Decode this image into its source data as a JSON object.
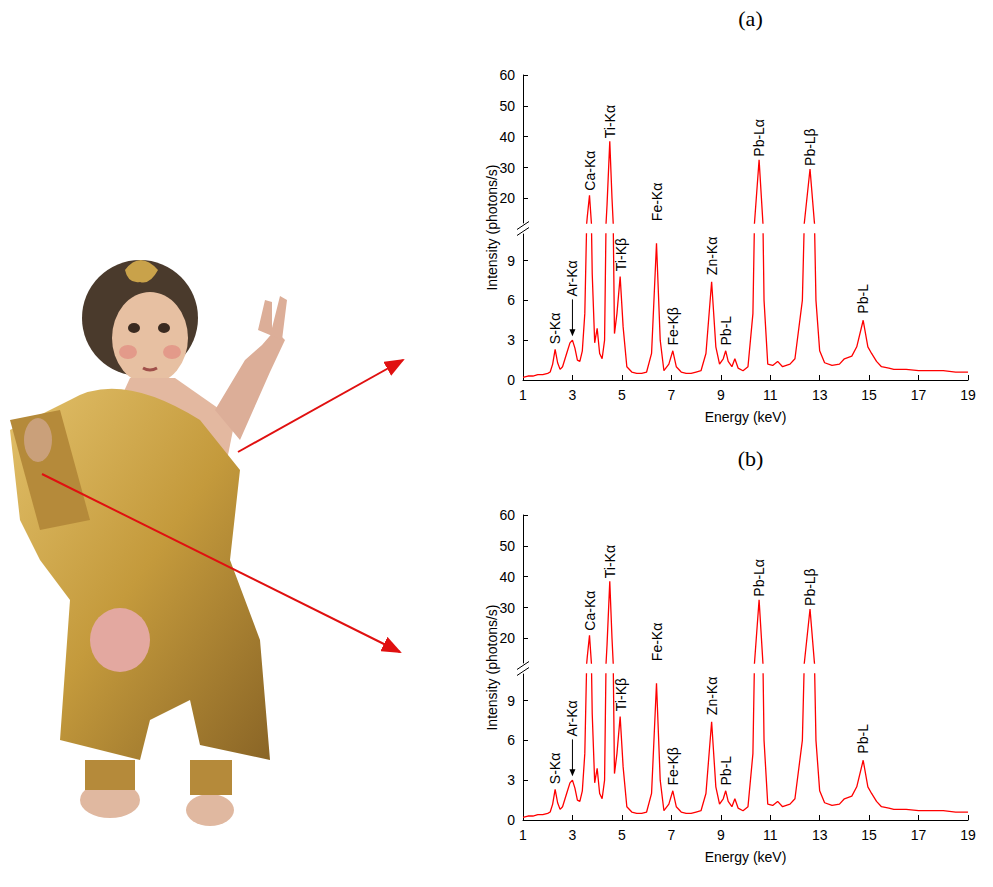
{
  "chart_data": [
    {
      "type": "line",
      "title": "(a)",
      "color": "#ff0000",
      "x_label": "Energy (keV)",
      "y_label": "Intensity (photons/s)",
      "xlim": [
        1,
        19
      ],
      "xticks": [
        1,
        3,
        5,
        7,
        9,
        11,
        13,
        15,
        17,
        19
      ],
      "ylim": [
        0,
        60
      ],
      "yticks": [
        0,
        3,
        6,
        9,
        20,
        30,
        40,
        50,
        60
      ],
      "y_break": [
        11,
        12
      ],
      "x": [
        1.0,
        1.2,
        1.4,
        1.6,
        1.8,
        2.0,
        2.1,
        2.2,
        2.3,
        2.4,
        2.5,
        2.6,
        2.7,
        2.8,
        2.9,
        3.0,
        3.1,
        3.2,
        3.3,
        3.4,
        3.5,
        3.6,
        3.69,
        3.8,
        3.9,
        4.0,
        4.1,
        4.2,
        4.3,
        4.4,
        4.51,
        4.6,
        4.7,
        4.8,
        4.93,
        5.05,
        5.2,
        5.4,
        5.6,
        5.8,
        6.0,
        6.2,
        6.4,
        6.55,
        6.7,
        6.9,
        7.06,
        7.2,
        7.4,
        7.6,
        7.8,
        8.0,
        8.2,
        8.4,
        8.63,
        8.8,
        8.95,
        9.1,
        9.2,
        9.3,
        9.45,
        9.57,
        9.7,
        9.9,
        10.1,
        10.3,
        10.55,
        10.75,
        10.9,
        11.1,
        11.3,
        11.5,
        11.8,
        12.0,
        12.3,
        12.61,
        12.85,
        13.0,
        13.2,
        13.5,
        13.8,
        14.0,
        14.3,
        14.5,
        14.76,
        14.95,
        15.1,
        15.3,
        15.5,
        15.8,
        16.0,
        16.5,
        17.0,
        17.5,
        18.0,
        18.5,
        19.0
      ],
      "values": [
        0.2,
        0.3,
        0.3,
        0.4,
        0.4,
        0.5,
        0.6,
        1.2,
        2.3,
        1.3,
        0.8,
        1.0,
        1.6,
        2.2,
        2.8,
        3.0,
        2.4,
        1.5,
        1.4,
        2.2,
        5.0,
        14,
        21,
        8,
        2.8,
        3.9,
        2.0,
        1.6,
        3.0,
        18,
        38.5,
        20,
        3.5,
        5.0,
        7.8,
        4.0,
        1.0,
        0.6,
        0.5,
        0.5,
        0.6,
        2.0,
        10.3,
        3.0,
        0.7,
        1.2,
        2.2,
        1.0,
        0.6,
        0.5,
        0.5,
        0.6,
        0.7,
        2.0,
        7.4,
        2.5,
        1.2,
        1.6,
        2.2,
        1.4,
        1.0,
        1.6,
        0.9,
        0.7,
        1.0,
        5.0,
        32.5,
        6,
        1.2,
        1.1,
        1.4,
        1.0,
        1.2,
        1.6,
        6.0,
        29.5,
        6.0,
        2.2,
        1.3,
        1.1,
        1.2,
        1.6,
        1.8,
        2.5,
        4.5,
        2.5,
        2.0,
        1.4,
        1.0,
        0.9,
        0.8,
        0.8,
        0.7,
        0.7,
        0.7,
        0.6,
        0.6
      ],
      "annotations": [
        {
          "text": "S-Kα",
          "x": 2.3,
          "y": 2.7
        },
        {
          "text": "Ar-Kα",
          "x": 3.0,
          "y": 6.3,
          "arrow_y": 3.3
        },
        {
          "text": "Ca-Kα",
          "x": 3.69,
          "y": 22.5
        },
        {
          "text": "Ti-Kα",
          "x": 4.51,
          "y": 39.5
        },
        {
          "text": "Ti-Kβ",
          "x": 4.98,
          "y": 8.2
        },
        {
          "text": "Fe-Kα",
          "x": 6.4,
          "y": 12.6
        },
        {
          "text": "Fe-Kβ",
          "x": 7.06,
          "y": 2.6
        },
        {
          "text": "Zn-Kα",
          "x": 8.63,
          "y": 7.9
        },
        {
          "text": "Pb-L",
          "x": 9.2,
          "y": 2.6
        },
        {
          "text": "Pb-Lα",
          "x": 10.55,
          "y": 33.5
        },
        {
          "text": "Pb-Lβ",
          "x": 12.61,
          "y": 30.5
        },
        {
          "text": "Pb-L",
          "x": 14.76,
          "y": 5.0
        }
      ]
    },
    {
      "type": "line",
      "title": "(b)",
      "color": "#ff0000",
      "x_label": "Energy (keV)",
      "y_label": "Intensity (photons/s)",
      "xlim": [
        1,
        19
      ],
      "xticks": [
        1,
        3,
        5,
        7,
        9,
        11,
        13,
        15,
        17,
        19
      ],
      "ylim": [
        0,
        60
      ],
      "yticks": [
        0,
        3,
        6,
        9,
        20,
        30,
        40,
        50,
        60
      ],
      "y_break": [
        11,
        12
      ],
      "x": [
        1.0,
        1.2,
        1.4,
        1.6,
        1.8,
        2.0,
        2.1,
        2.2,
        2.3,
        2.4,
        2.5,
        2.6,
        2.7,
        2.8,
        2.9,
        3.0,
        3.1,
        3.2,
        3.3,
        3.4,
        3.5,
        3.6,
        3.69,
        3.8,
        3.9,
        4.0,
        4.1,
        4.2,
        4.3,
        4.4,
        4.51,
        4.6,
        4.7,
        4.8,
        4.93,
        5.05,
        5.2,
        5.4,
        5.6,
        5.8,
        6.0,
        6.2,
        6.4,
        6.55,
        6.7,
        6.9,
        7.06,
        7.2,
        7.4,
        7.6,
        7.8,
        8.0,
        8.2,
        8.4,
        8.63,
        8.8,
        8.95,
        9.1,
        9.2,
        9.3,
        9.45,
        9.57,
        9.7,
        9.9,
        10.1,
        10.3,
        10.55,
        10.75,
        10.9,
        11.1,
        11.3,
        11.5,
        11.8,
        12.0,
        12.3,
        12.61,
        12.85,
        13.0,
        13.2,
        13.5,
        13.8,
        14.0,
        14.3,
        14.5,
        14.76,
        14.95,
        15.1,
        15.3,
        15.5,
        15.8,
        16.0,
        16.5,
        17.0,
        17.5,
        18.0,
        18.5,
        19.0
      ],
      "values": [
        0.2,
        0.3,
        0.3,
        0.4,
        0.4,
        0.5,
        0.6,
        1.2,
        2.3,
        1.3,
        0.8,
        1.0,
        1.6,
        2.2,
        2.8,
        3.0,
        2.4,
        1.5,
        1.4,
        2.2,
        5.0,
        14,
        21,
        8,
        2.8,
        3.9,
        2.0,
        1.6,
        3.0,
        18,
        38.5,
        20,
        3.5,
        5.0,
        7.8,
        4.0,
        1.0,
        0.6,
        0.5,
        0.5,
        0.6,
        2.0,
        10.3,
        3.0,
        0.7,
        1.2,
        2.2,
        1.0,
        0.6,
        0.5,
        0.5,
        0.6,
        0.7,
        2.0,
        7.4,
        2.5,
        1.2,
        1.6,
        2.2,
        1.4,
        1.0,
        1.6,
        0.9,
        0.7,
        1.0,
        5.0,
        32.5,
        6,
        1.2,
        1.1,
        1.4,
        1.0,
        1.2,
        1.6,
        6.0,
        29.5,
        6.0,
        2.2,
        1.3,
        1.1,
        1.2,
        1.6,
        1.8,
        2.5,
        4.5,
        2.5,
        2.0,
        1.4,
        1.0,
        0.9,
        0.8,
        0.8,
        0.7,
        0.7,
        0.7,
        0.6,
        0.6
      ],
      "annotations": [
        {
          "text": "S-Kα",
          "x": 2.3,
          "y": 2.7
        },
        {
          "text": "Ar-Kα",
          "x": 3.0,
          "y": 6.3,
          "arrow_y": 3.3
        },
        {
          "text": "Ca-Kα",
          "x": 3.69,
          "y": 22.5
        },
        {
          "text": "Ti-Kα",
          "x": 4.51,
          "y": 39.5
        },
        {
          "text": "Ti-Kβ",
          "x": 4.98,
          "y": 8.2
        },
        {
          "text": "Fe-Kα",
          "x": 6.4,
          "y": 12.6
        },
        {
          "text": "Fe-Kβ",
          "x": 7.06,
          "y": 2.6
        },
        {
          "text": "Zn-Kα",
          "x": 8.63,
          "y": 7.9
        },
        {
          "text": "Pb-L",
          "x": 9.2,
          "y": 2.6
        },
        {
          "text": "Pb-Lα",
          "x": 10.55,
          "y": 33.5
        },
        {
          "text": "Pb-Lβ",
          "x": 12.61,
          "y": 30.5
        },
        {
          "text": "Pb-L",
          "x": 14.76,
          "y": 5.0
        }
      ]
    }
  ]
}
